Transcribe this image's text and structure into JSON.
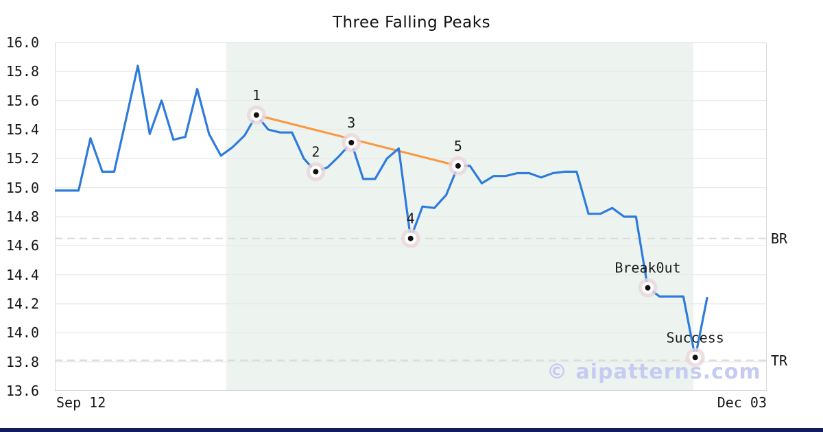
{
  "page": {
    "background": "#ffffff",
    "bottom_bar_color": "#131b5c"
  },
  "watermark": "© aipatterns.com",
  "colors": {
    "line_blue": "#2e7bdc",
    "trend_orange": "#f79a47",
    "shade": "#edf4f0",
    "grid": "#e8e8e8",
    "plot_border": "#d8d8d8",
    "dashed_line": "#d9d9d9",
    "marker_halo": "#ead7db",
    "marker_ring": "#ffffff",
    "marker_dot": "#111111",
    "label_text": "#1a1a1a",
    "watermark_color": "#c6cbf2"
  },
  "chart_data": {
    "type": "line",
    "title": "Three Falling Peaks",
    "xlabel": "",
    "ylabel": "",
    "grid": true,
    "legend": false,
    "x_axis": {
      "tick_labels": [
        "Sep 12",
        "Dec 03"
      ]
    },
    "y_axis": {
      "min": 13.6,
      "max": 16.0,
      "step": 0.2,
      "tick_labels": [
        "16.0",
        "15.8",
        "15.6",
        "15.4",
        "15.2",
        "15.0",
        "14.8",
        "14.6",
        "14.4",
        "14.2",
        "14.0",
        "13.8",
        "13.6"
      ]
    },
    "series": [
      {
        "name": "price",
        "values": [
          14.98,
          14.98,
          14.98,
          15.34,
          15.11,
          15.11,
          15.47,
          15.84,
          15.37,
          15.6,
          15.33,
          15.35,
          15.68,
          15.37,
          15.22,
          15.28,
          15.36,
          15.5,
          15.4,
          15.38,
          15.38,
          15.2,
          15.11,
          15.14,
          15.22,
          15.31,
          15.06,
          15.06,
          15.2,
          15.27,
          14.65,
          14.87,
          14.86,
          14.95,
          15.15,
          15.15,
          15.03,
          15.08,
          15.08,
          15.1,
          15.1,
          15.07,
          15.1,
          15.11,
          15.11,
          14.82,
          14.82,
          14.86,
          14.8,
          14.8,
          14.31,
          14.25,
          14.25,
          14.25,
          13.83,
          14.24
        ]
      }
    ],
    "trendline": {
      "from": {
        "index": 17,
        "value": 15.5
      },
      "to": {
        "index": 34,
        "value": 15.15
      }
    },
    "annotations": [
      {
        "label": "1",
        "index": 17,
        "value": 15.5
      },
      {
        "label": "2",
        "index": 22,
        "value": 15.11
      },
      {
        "label": "3",
        "index": 25,
        "value": 15.31
      },
      {
        "label": "4",
        "index": 30,
        "value": 14.65
      },
      {
        "label": "5",
        "index": 34,
        "value": 15.15
      },
      {
        "label": "Break0ut",
        "index": 50,
        "value": 14.31
      },
      {
        "label": "Success",
        "index": 54,
        "value": 13.83
      }
    ],
    "reference_lines": [
      {
        "label": "BR",
        "value": 14.65
      },
      {
        "label": "TR",
        "value": 13.81
      }
    ],
    "shade_region": {
      "from_index": 14.46,
      "to_index": 53.85
    }
  }
}
